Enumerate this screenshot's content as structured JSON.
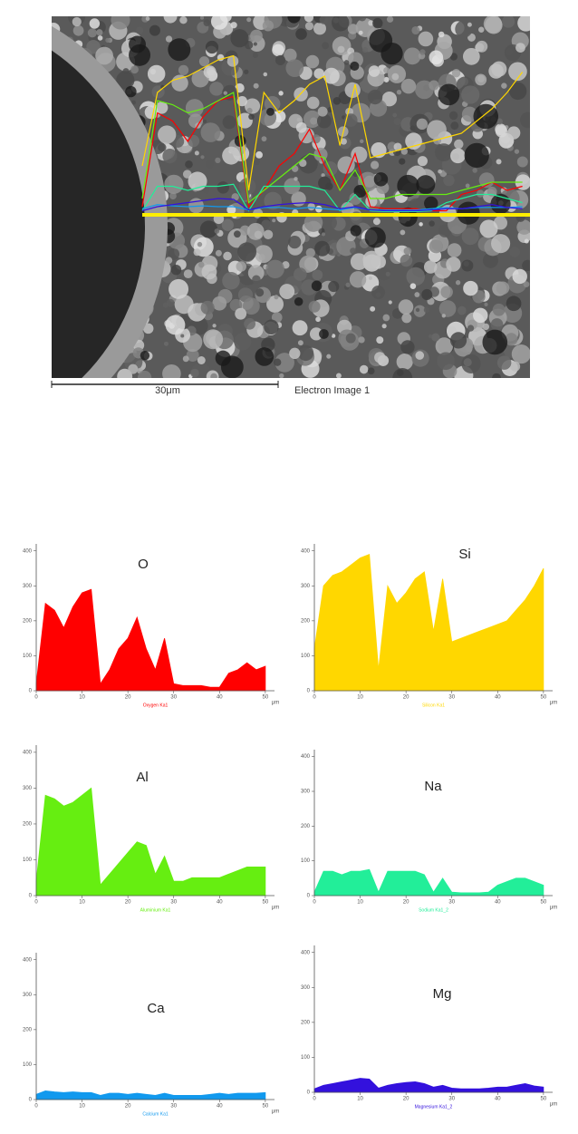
{
  "image": {
    "scale_label": "30μm",
    "caption": "Electron Image 1"
  },
  "chart_data": [
    {
      "type": "area",
      "title": "O",
      "x_label": "μm",
      "xlim": [
        0,
        52
      ],
      "ylim": [
        0,
        420
      ],
      "xticks": [
        0,
        10,
        20,
        30,
        40,
        50
      ],
      "yticks": [
        0,
        100,
        200,
        300,
        400
      ],
      "x": [
        0,
        2,
        4,
        6,
        8,
        10,
        12,
        14,
        16,
        18,
        20,
        22,
        24,
        26,
        28,
        30,
        32,
        34,
        36,
        38,
        40,
        42,
        44,
        46,
        48,
        50
      ],
      "series": [
        {
          "name": "Oxygen Ka1",
          "color": "#ff0000",
          "values": [
            20,
            250,
            230,
            180,
            240,
            280,
            290,
            20,
            60,
            120,
            150,
            210,
            120,
            60,
            150,
            20,
            15,
            15,
            15,
            10,
            10,
            50,
            60,
            80,
            60,
            70
          ]
        }
      ]
    },
    {
      "type": "area",
      "title": "Si",
      "x_label": "μm",
      "xlim": [
        0,
        52
      ],
      "ylim": [
        0,
        420
      ],
      "xticks": [
        0,
        10,
        20,
        30,
        40,
        50
      ],
      "yticks": [
        0,
        100,
        200,
        300,
        400
      ],
      "x": [
        0,
        2,
        4,
        6,
        8,
        10,
        12,
        14,
        16,
        18,
        20,
        22,
        24,
        26,
        28,
        30,
        32,
        34,
        36,
        38,
        40,
        42,
        44,
        46,
        48,
        50
      ],
      "series": [
        {
          "name": "Silicon Ka1",
          "color": "#ffd700",
          "values": [
            120,
            300,
            330,
            340,
            360,
            380,
            390,
            60,
            300,
            250,
            280,
            320,
            340,
            170,
            320,
            140,
            150,
            160,
            170,
            180,
            190,
            200,
            230,
            260,
            300,
            350
          ]
        }
      ]
    },
    {
      "type": "area",
      "title": "Al",
      "x_label": "μm",
      "xlim": [
        0,
        52
      ],
      "ylim": [
        0,
        420
      ],
      "xticks": [
        0,
        10,
        20,
        30,
        40,
        50
      ],
      "yticks": [
        0,
        100,
        200,
        300,
        400
      ],
      "x": [
        0,
        2,
        4,
        6,
        8,
        10,
        12,
        14,
        16,
        18,
        20,
        22,
        24,
        26,
        28,
        30,
        32,
        34,
        36,
        38,
        40,
        42,
        44,
        46,
        48,
        50
      ],
      "series": [
        {
          "name": "Aluminium Ka1",
          "color": "#66ee11",
          "values": [
            40,
            280,
            270,
            250,
            260,
            280,
            300,
            30,
            60,
            90,
            120,
            150,
            140,
            60,
            110,
            40,
            40,
            50,
            50,
            50,
            50,
            60,
            70,
            80,
            80,
            80
          ]
        }
      ]
    },
    {
      "type": "area",
      "title": "Na",
      "x_label": "μm",
      "xlim": [
        0,
        52
      ],
      "ylim": [
        0,
        420
      ],
      "xticks": [
        0,
        10,
        20,
        30,
        40,
        50
      ],
      "yticks": [
        0,
        100,
        200,
        300,
        400
      ],
      "x": [
        0,
        2,
        4,
        6,
        8,
        10,
        12,
        14,
        16,
        18,
        20,
        22,
        24,
        26,
        28,
        30,
        32,
        34,
        36,
        38,
        40,
        42,
        44,
        46,
        48,
        50
      ],
      "series": [
        {
          "name": "Sodium Ka1_2",
          "color": "#22ee99",
          "values": [
            10,
            70,
            70,
            60,
            70,
            70,
            75,
            10,
            70,
            70,
            70,
            70,
            60,
            10,
            50,
            10,
            8,
            8,
            8,
            10,
            30,
            40,
            50,
            50,
            40,
            30
          ]
        }
      ]
    },
    {
      "type": "area",
      "title": "Ca",
      "x_label": "μm",
      "xlim": [
        0,
        52
      ],
      "ylim": [
        0,
        420
      ],
      "xticks": [
        0,
        10,
        20,
        30,
        40,
        50
      ],
      "yticks": [
        0,
        100,
        200,
        300,
        400
      ],
      "x": [
        0,
        2,
        4,
        6,
        8,
        10,
        12,
        14,
        16,
        18,
        20,
        22,
        24,
        26,
        28,
        30,
        32,
        34,
        36,
        38,
        40,
        42,
        44,
        46,
        48,
        50
      ],
      "series": [
        {
          "name": "Calcium Ka1",
          "color": "#1199ee",
          "values": [
            15,
            25,
            22,
            20,
            22,
            20,
            20,
            12,
            18,
            18,
            15,
            18,
            15,
            12,
            18,
            12,
            12,
            12,
            12,
            15,
            18,
            15,
            18,
            18,
            18,
            20
          ]
        }
      ]
    },
    {
      "type": "area",
      "title": "Mg",
      "x_label": "μm",
      "xlim": [
        0,
        52
      ],
      "ylim": [
        0,
        420
      ],
      "xticks": [
        0,
        10,
        20,
        30,
        40,
        50
      ],
      "yticks": [
        0,
        100,
        200,
        300,
        400
      ],
      "x": [
        0,
        2,
        4,
        6,
        8,
        10,
        12,
        14,
        16,
        18,
        20,
        22,
        24,
        26,
        28,
        30,
        32,
        34,
        36,
        38,
        40,
        42,
        44,
        46,
        48,
        50
      ],
      "series": [
        {
          "name": "Magnesium Ka1_2",
          "color": "#3311dd",
          "values": [
            10,
            20,
            25,
            30,
            35,
            40,
            38,
            12,
            20,
            25,
            28,
            30,
            25,
            15,
            20,
            12,
            10,
            10,
            10,
            12,
            15,
            15,
            20,
            25,
            18,
            15
          ]
        }
      ]
    }
  ]
}
